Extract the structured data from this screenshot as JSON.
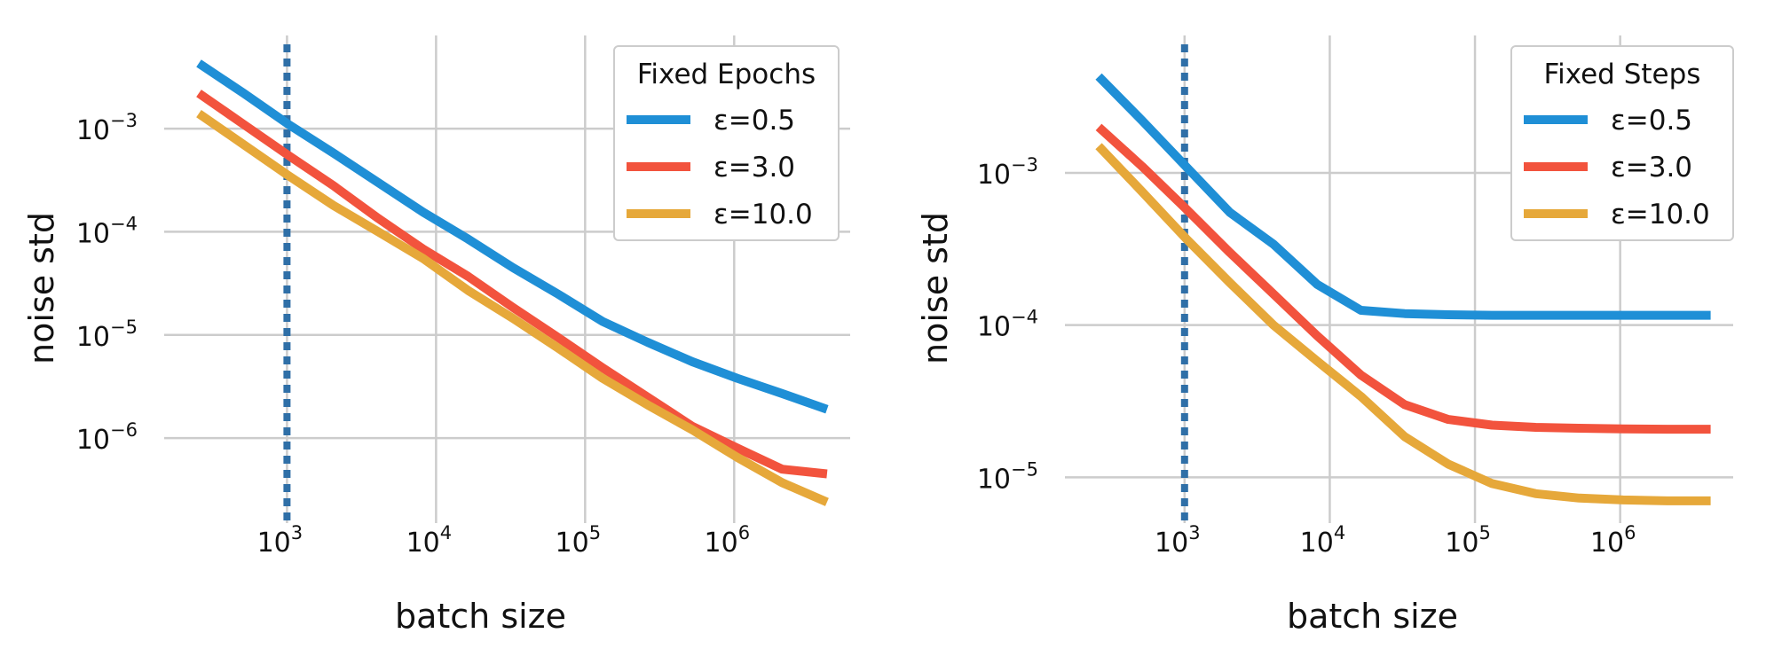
{
  "chart_data": [
    {
      "type": "line",
      "title": "",
      "xlabel": "batch size",
      "ylabel": "noise std",
      "xscale": "log",
      "yscale": "log",
      "xlim": [
        150,
        6000000
      ],
      "ylim": [
        1.5e-07,
        0.008
      ],
      "xticks": [
        {
          "value": 1000,
          "base": "10",
          "exp": "3"
        },
        {
          "value": 10000,
          "base": "10",
          "exp": "4"
        },
        {
          "value": 100000,
          "base": "10",
          "exp": "5"
        },
        {
          "value": 1000000,
          "base": "10",
          "exp": "6"
        }
      ],
      "yticks": [
        {
          "value": 0.001,
          "base": "10",
          "exp": "−3"
        },
        {
          "value": 0.0001,
          "base": "10",
          "exp": "−4"
        },
        {
          "value": 1e-05,
          "base": "10",
          "exp": "−5"
        },
        {
          "value": 1e-06,
          "base": "10",
          "exp": "−6"
        }
      ],
      "vline": {
        "x": 1000,
        "color": "#2f6fa7",
        "style": "dotted"
      },
      "legend": {
        "title": "Fixed Epochs",
        "position": "top-right"
      },
      "grid": true,
      "series": [
        {
          "name": "ε=0.5",
          "color": "#1f8fd6",
          "x": [
            256,
            512,
            1024,
            2048,
            4096,
            8192,
            16384,
            32768,
            65536,
            131072,
            262144,
            524288,
            1048576,
            2097152,
            4194304
          ],
          "y": [
            0.0043,
            0.0022,
            0.0011,
            0.00058,
            0.0003,
            0.000155,
            8.5e-05,
            4.5e-05,
            2.5e-05,
            1.35e-05,
            8.5e-06,
            5.5e-06,
            3.8e-06,
            2.7e-06,
            1.9e-06
          ]
        },
        {
          "name": "ε=3.0",
          "color": "#f2533d",
          "x": [
            256,
            512,
            1024,
            2048,
            4096,
            8192,
            16384,
            32768,
            65536,
            131072,
            262144,
            524288,
            1048576,
            2097152,
            4194304
          ],
          "y": [
            0.0022,
            0.0011,
            0.00055,
            0.00028,
            0.000135,
            6.8e-05,
            3.7e-05,
            1.85e-05,
            9.5e-06,
            4.8e-06,
            2.5e-06,
            1.3e-06,
            8e-07,
            5e-07,
            4.5e-07
          ]
        },
        {
          "name": "ε=10.0",
          "color": "#e6a83a",
          "x": [
            256,
            512,
            1024,
            2048,
            4096,
            8192,
            16384,
            32768,
            65536,
            131072,
            262144,
            524288,
            1048576,
            2097152,
            4194304
          ],
          "y": [
            0.0014,
            0.0007,
            0.00035,
            0.00018,
            0.0001,
            5.5e-05,
            2.7e-05,
            1.45e-05,
            7.5e-06,
            3.8e-06,
            2.1e-06,
            1.2e-06,
            6.5e-07,
            3.7e-07,
            2.4e-07
          ]
        }
      ]
    },
    {
      "type": "line",
      "title": "",
      "xlabel": "batch size",
      "ylabel": "noise std",
      "xscale": "log",
      "yscale": "log",
      "xlim": [
        150,
        6000000
      ],
      "ylim": [
        5e-06,
        0.008
      ],
      "xticks": [
        {
          "value": 1000,
          "base": "10",
          "exp": "3"
        },
        {
          "value": 10000,
          "base": "10",
          "exp": "4"
        },
        {
          "value": 100000,
          "base": "10",
          "exp": "5"
        },
        {
          "value": 1000000,
          "base": "10",
          "exp": "6"
        }
      ],
      "yticks": [
        {
          "value": 0.001,
          "base": "10",
          "exp": "−3"
        },
        {
          "value": 0.0001,
          "base": "10",
          "exp": "−4"
        },
        {
          "value": 1e-05,
          "base": "10",
          "exp": "−5"
        }
      ],
      "vline": {
        "x": 1000,
        "color": "#2f6fa7",
        "style": "dotted"
      },
      "legend": {
        "title": "Fixed Steps",
        "position": "top-right"
      },
      "grid": true,
      "series": [
        {
          "name": "ε=0.5",
          "color": "#1f8fd6",
          "x": [
            256,
            512,
            1024,
            2048,
            4096,
            8192,
            16384,
            32768,
            65536,
            131072,
            262144,
            524288,
            1048576,
            2097152,
            4194304
          ],
          "y": [
            0.0043,
            0.0022,
            0.0011,
            0.00055,
            0.00034,
            0.000185,
            0.000125,
            0.000119,
            0.000117,
            0.000116,
            0.000116,
            0.000116,
            0.000116,
            0.000116,
            0.000116
          ]
        },
        {
          "name": "ε=3.0",
          "color": "#f2533d",
          "x": [
            256,
            512,
            1024,
            2048,
            4096,
            8192,
            16384,
            32768,
            65536,
            131072,
            262144,
            524288,
            1048576,
            2097152,
            4194304
          ],
          "y": [
            0.002,
            0.0011,
            0.00058,
            0.0003,
            0.00016,
            8.5e-05,
            4.7e-05,
            3e-05,
            2.4e-05,
            2.2e-05,
            2.13e-05,
            2.1e-05,
            2.08e-05,
            2.07e-05,
            2.07e-05
          ]
        },
        {
          "name": "ε=10.0",
          "color": "#e6a83a",
          "x": [
            256,
            512,
            1024,
            2048,
            4096,
            8192,
            16384,
            32768,
            65536,
            131072,
            262144,
            524288,
            1048576,
            2097152,
            4194304
          ],
          "y": [
            0.0015,
            0.00075,
            0.00037,
            0.00019,
            0.0001,
            5.8e-05,
            3.4e-05,
            1.85e-05,
            1.22e-05,
            9.1e-06,
            7.8e-06,
            7.3e-06,
            7.1e-06,
            7e-06,
            7e-06
          ]
        }
      ]
    }
  ]
}
